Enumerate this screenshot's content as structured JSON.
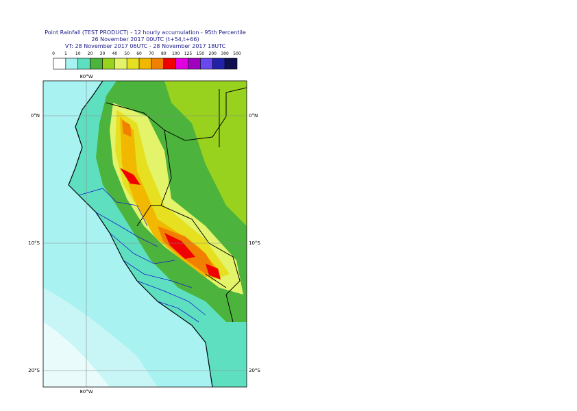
{
  "header": {
    "title": "Point Rainfall (TEST PRODUCT) - 12 hourly accumulation - 95th Percentile",
    "subtitle": "26 November 2017 00UTC (t+54,t+66)",
    "valid_time": "VT: 28 November 2017 06UTC - 28 November 2017 18UTC"
  },
  "legend": {
    "labels": [
      "0",
      "1",
      "10",
      "20",
      "30",
      "40",
      "50",
      "60",
      "70",
      "80",
      "100",
      "125",
      "150",
      "200",
      "300",
      "500"
    ],
    "colors": [
      "#ffffff",
      "#a8f2f2",
      "#5ee0c0",
      "#4cb43c",
      "#98d21e",
      "#e4f46a",
      "#e6e020",
      "#f2b800",
      "#f28000",
      "#f00000",
      "#e000e0",
      "#a000c0",
      "#6a48f0",
      "#2222a8",
      "#10104e"
    ]
  },
  "map": {
    "lat_labels": [
      "0°N",
      "10°S",
      "20°S"
    ],
    "lon_label": "80°W"
  }
}
